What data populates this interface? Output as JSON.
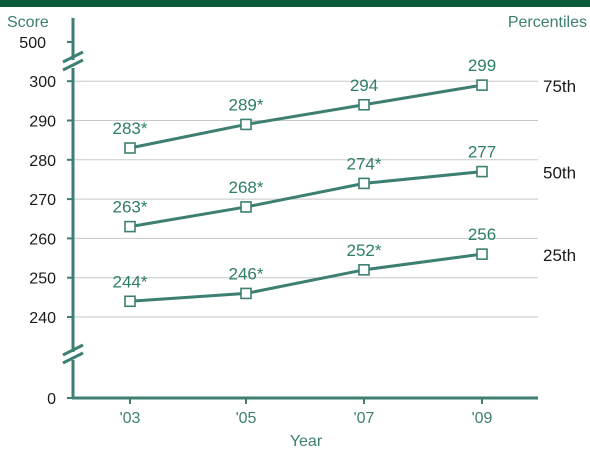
{
  "chart_data": {
    "type": "line",
    "ylabel": "Score",
    "xlabel": "Year",
    "legend_title": "Percentiles",
    "categories": [
      "'03",
      "'05",
      "'07",
      "'09"
    ],
    "y_ticks": [
      "0",
      "240",
      "250",
      "260",
      "270",
      "280",
      "290",
      "300",
      "500"
    ],
    "y_range_shown": [
      240,
      300
    ],
    "axis_breaks": [
      "between 0 and 240",
      "between 300 and 500"
    ],
    "grid": "horizontal",
    "series": [
      {
        "name": "75th",
        "values": [
          283,
          289,
          294,
          299
        ],
        "labels": [
          "283*",
          "289*",
          "294",
          "299"
        ]
      },
      {
        "name": "50th",
        "values": [
          263,
          268,
          274,
          277
        ],
        "labels": [
          "263*",
          "268*",
          "274*",
          "277"
        ]
      },
      {
        "name": "25th",
        "values": [
          244,
          246,
          252,
          256
        ],
        "labels": [
          "244*",
          "246*",
          "252*",
          "256"
        ]
      }
    ],
    "colors": {
      "line": "#3d7f73",
      "text_accent": "#2e7d6b",
      "header_bar": "#0b5a3a",
      "grid": "#c8c8c8"
    }
  }
}
